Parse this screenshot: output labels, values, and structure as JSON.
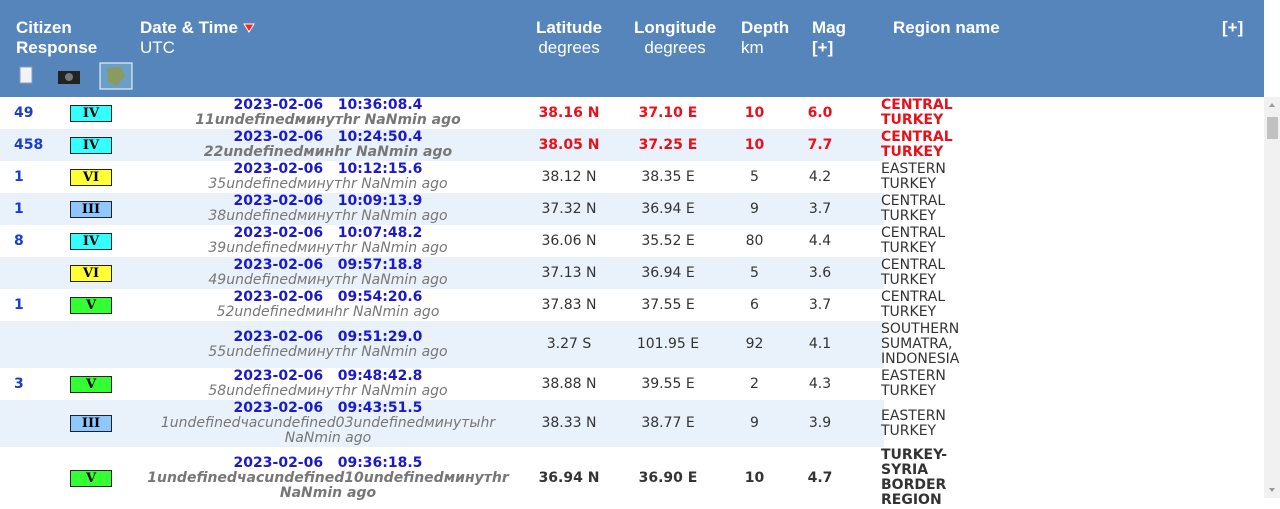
{
  "header": {
    "citizen": "Citizen Response",
    "datetime": "Date & Time",
    "utc": "UTC",
    "lat": "Latitude",
    "lat_unit": "degrees",
    "lon": "Longitude",
    "lon_unit": "degrees",
    "depth": "Depth",
    "depth_unit": "km",
    "mag": "Mag",
    "mag_more": "[+]",
    "region": "Region name",
    "region_more": "[+]"
  },
  "table": {
    "rows": [
      {
        "response": "49",
        "intensity": "IV",
        "intensity_color": "#33ffff",
        "date": "2023-02-06   10:36:08.4",
        "ago": "11undefinedминутhr NaNmin ago",
        "lat": "38.16 N",
        "lon": "37.10 E",
        "depth": "10",
        "mag": "6.0",
        "region": "CENTRAL TURKEY",
        "color": "#e8101a",
        "bold": true
      },
      {
        "response": "458",
        "intensity": "IV",
        "intensity_color": "#33ffff",
        "date": "2023-02-06   10:24:50.4",
        "ago": "22undefinedминhr NaNmin ago",
        "lat": "38.05 N",
        "lon": "37.25 E",
        "depth": "10",
        "mag": "7.7",
        "region": "CENTRAL TURKEY",
        "color": "#e8101a",
        "bold": true
      },
      {
        "response": "1",
        "intensity": "VI",
        "intensity_color": "#ffff33",
        "date": "2023-02-06   10:12:15.6",
        "ago": "35undefinedминутhr NaNmin ago",
        "lat": "38.12 N",
        "lon": "38.35 E",
        "depth": "5",
        "mag": "4.2",
        "region": "EASTERN TURKEY"
      },
      {
        "response": "1",
        "intensity": "III",
        "intensity_color": "#8fc8ff",
        "date": "2023-02-06   10:09:13.9",
        "ago": "38undefinedминутhr NaNmin ago",
        "lat": "37.32 N",
        "lon": "36.94 E",
        "depth": "9",
        "mag": "3.7",
        "region": "CENTRAL TURKEY"
      },
      {
        "response": "8",
        "intensity": "IV",
        "intensity_color": "#33ffff",
        "date": "2023-02-06   10:07:48.2",
        "ago": "39undefinedминутhr NaNmin ago",
        "lat": "36.06 N",
        "lon": "35.52 E",
        "depth": "80",
        "mag": "4.4",
        "region": "CENTRAL TURKEY"
      },
      {
        "response": null,
        "intensity": "VI",
        "intensity_color": "#ffff33",
        "date": "2023-02-06   09:57:18.8",
        "ago": "49undefinedминутhr NaNmin ago",
        "lat": "37.13 N",
        "lon": "36.94 E",
        "depth": "5",
        "mag": "3.6",
        "region": "CENTRAL TURKEY"
      },
      {
        "response": "1",
        "intensity": "V",
        "intensity_color": "#33ff33",
        "date": "2023-02-06   09:54:20.6",
        "ago": "52undefinedминhr NaNmin ago",
        "lat": "37.83 N",
        "lon": "37.55 E",
        "depth": "6",
        "mag": "3.7",
        "region": "CENTRAL TURKEY"
      },
      {
        "response": null,
        "intensity": null,
        "intensity_color": null,
        "date": "2023-02-06   09:51:29.0",
        "ago": "55undefinedминутhr NaNmin ago",
        "lat": "3.27 S",
        "lon": "101.95 E",
        "depth": "92",
        "mag": "4.1",
        "region": "SOUTHERN SUMATRA, INDONESIA"
      },
      {
        "response": "3",
        "intensity": "V",
        "intensity_color": "#33ff33",
        "date": "2023-02-06   09:48:42.8",
        "ago": "58undefinedминутhr NaNmin ago",
        "lat": "38.88 N",
        "lon": "39.55 E",
        "depth": "2",
        "mag": "4.3",
        "region": "EASTERN TURKEY"
      },
      {
        "response": null,
        "intensity": "III",
        "intensity_color": "#8fc8ff",
        "date": "2023-02-06   09:43:51.5",
        "ago": "1undefinedчacundefined03undefinedминутыhr NaNmin ago",
        "lat": "38.33 N",
        "lon": "38.77 E",
        "depth": "9",
        "mag": "3.9",
        "region": "EASTERN TURKEY"
      },
      {
        "response": null,
        "intensity": "V",
        "intensity_color": "#33ff33",
        "date": "2023-02-06   09:36:18.5",
        "ago": "1undefinedчacundefined10undefinedминутhr NaNmin ago",
        "lat": "36.94 N",
        "lon": "36.90 E",
        "depth": "10",
        "mag": "4.7",
        "region": "TURKEY-SYRIA BORDER REGION",
        "bold": true
      }
    ]
  }
}
